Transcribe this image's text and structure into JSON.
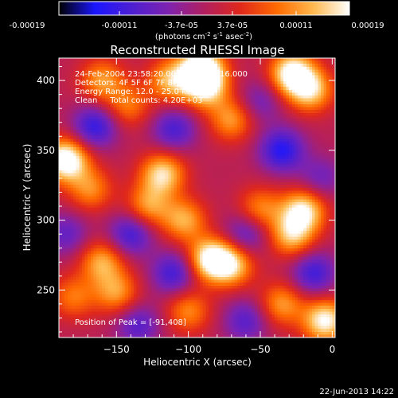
{
  "colorbar": {
    "tick_labels": [
      "-0.00019",
      "-0.00011",
      "-3.7e-05",
      "3.7e-05",
      "0.00011",
      "0.00019"
    ],
    "units_text": "(photons cm",
    "units_exp1": "-2",
    "units_mid": " s",
    "units_exp2": "-1",
    "units_mid2": " asec",
    "units_exp3": "-2",
    "units_close": ")",
    "colors": [
      "#000000",
      "#1a16ff",
      "#4d1fd2",
      "#7d22b0",
      "#b21f5f",
      "#e0281b",
      "#ff6a00",
      "#ffb84d",
      "#ffffff"
    ]
  },
  "chart_data": {
    "type": "heatmap",
    "title": "Reconstructed RHESSI Image",
    "xlabel": "Heliocentric X (arcsec)",
    "ylabel": "Heliocentric Y (arcsec)",
    "xlim": [
      -190,
      2
    ],
    "ylim": [
      216,
      416
    ],
    "x_ticks": [
      -150,
      -100,
      -50,
      0
    ],
    "y_ticks": [
      250,
      300,
      350,
      400
    ],
    "x_tick_labels": [
      "−150",
      "−100",
      "−50",
      "0"
    ],
    "y_tick_labels": [
      "250",
      "300",
      "350",
      "400"
    ],
    "clim": [
      -0.00019,
      0.00019
    ],
    "peak_position": [
      -91,
      408
    ],
    "annotations": [
      "24-Feb-2004 23:58:20.000 to 00:01:16.000",
      "Detectors: 4F 5F 6F 7F 8F, Att 0",
      "Energy Range: 12.0 - 25.0 keV",
      "Clean     Total counts: 4.20E+03",
      "Position of Peak = [-91,408]"
    ],
    "sources": [
      {
        "x": -185,
        "y": 343,
        "amp": 0.00019
      },
      {
        "x": -160,
        "y": 400,
        "amp": 0.0001
      },
      {
        "x": -142,
        "y": 382,
        "amp": 8e-05
      },
      {
        "x": -113,
        "y": 400,
        "amp": 0.00011
      },
      {
        "x": -88,
        "y": 395,
        "amp": 0.00013
      },
      {
        "x": -91,
        "y": 408,
        "amp": 0.00019
      },
      {
        "x": -28,
        "y": 405,
        "amp": 0.00017
      },
      {
        "x": -15,
        "y": 393,
        "amp": 0.00013
      },
      {
        "x": -70,
        "y": 372,
        "amp": 0.0001
      },
      {
        "x": -118,
        "y": 333,
        "amp": 0.00014
      },
      {
        "x": -128,
        "y": 310,
        "amp": 0.0001
      },
      {
        "x": -103,
        "y": 300,
        "amp": 0.00011
      },
      {
        "x": -50,
        "y": 308,
        "amp": 9e-05
      },
      {
        "x": -20,
        "y": 307,
        "amp": 0.00015
      },
      {
        "x": -28,
        "y": 289,
        "amp": 0.00012
      },
      {
        "x": -85,
        "y": 272,
        "amp": 0.00016
      },
      {
        "x": -70,
        "y": 268,
        "amp": 0.00013
      },
      {
        "x": -160,
        "y": 270,
        "amp": 0.00011
      },
      {
        "x": -180,
        "y": 245,
        "amp": 8e-05
      },
      {
        "x": -100,
        "y": 235,
        "amp": 9e-05
      },
      {
        "x": -5,
        "y": 228,
        "amp": 0.00016
      },
      {
        "x": -35,
        "y": 240,
        "amp": 0.0001
      },
      {
        "x": -168,
        "y": 322,
        "amp": 9e-05
      },
      {
        "x": -150,
        "y": 248,
        "amp": 0.0001
      },
      {
        "x": -165,
        "y": 367,
        "amp": -0.00011
      },
      {
        "x": -110,
        "y": 365,
        "amp": -9e-05
      },
      {
        "x": -35,
        "y": 350,
        "amp": -0.00012
      },
      {
        "x": -140,
        "y": 290,
        "amp": -0.0001
      },
      {
        "x": -60,
        "y": 290,
        "amp": -8e-05
      },
      {
        "x": -110,
        "y": 262,
        "amp": -0.0001
      },
      {
        "x": -13,
        "y": 262,
        "amp": -0.0001
      },
      {
        "x": -185,
        "y": 290,
        "amp": -7e-05
      },
      {
        "x": -60,
        "y": 228,
        "amp": -8e-05
      },
      {
        "x": -135,
        "y": 225,
        "amp": -8e-05
      },
      {
        "x": -50,
        "y": 385,
        "amp": -6e-05
      },
      {
        "x": -8,
        "y": 330,
        "amp": -6e-05
      }
    ]
  },
  "footer": {
    "date": "22-Jun-2013 14:22"
  }
}
